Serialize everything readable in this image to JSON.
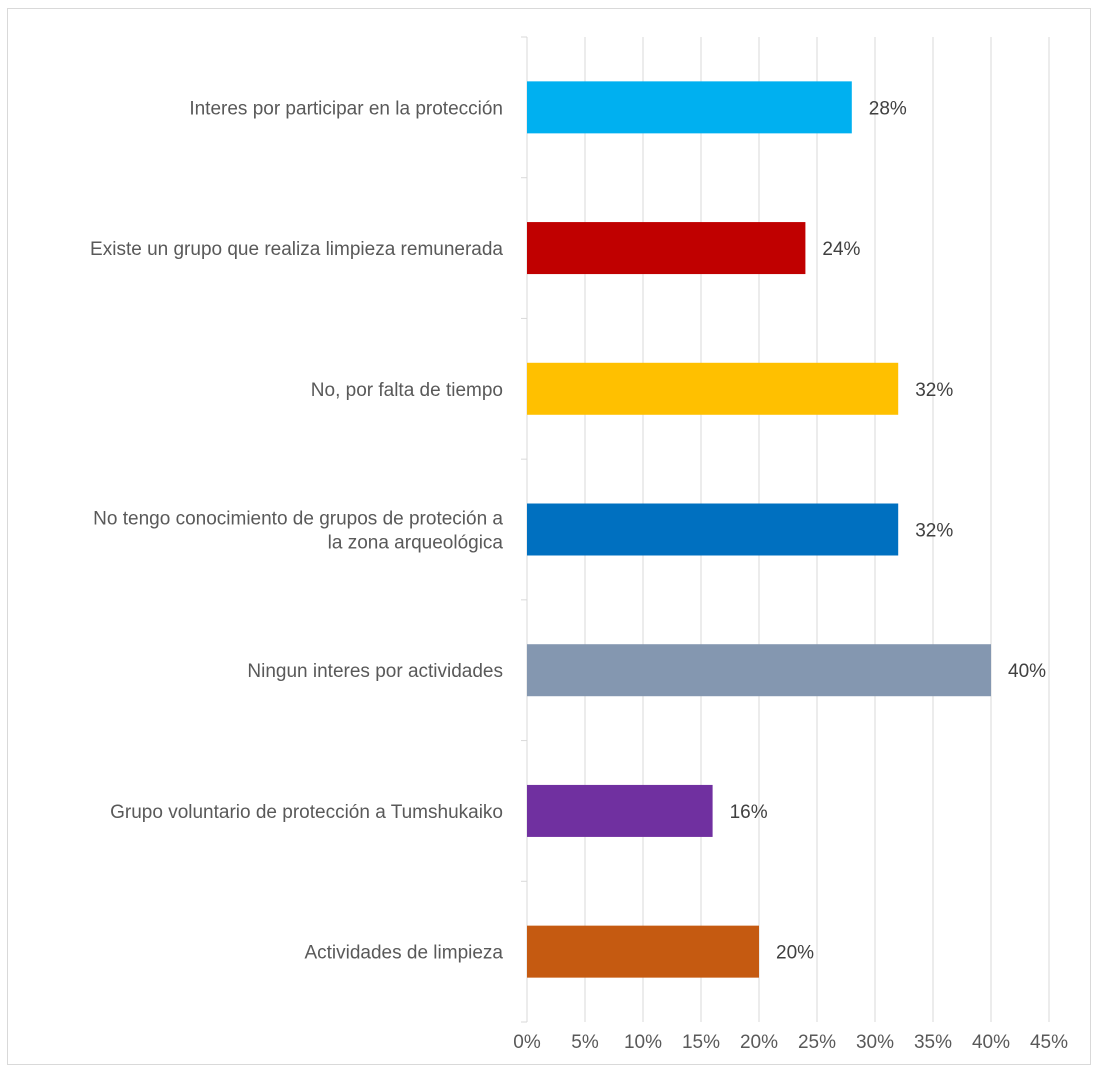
{
  "chart_data": {
    "type": "bar",
    "orientation": "horizontal",
    "title": "",
    "xlabel": "",
    "ylabel": "",
    "xlim": [
      0,
      45
    ],
    "x_ticks": [
      "0%",
      "5%",
      "10%",
      "15%",
      "20%",
      "25%",
      "30%",
      "35%",
      "40%",
      "45%"
    ],
    "grid": "vertical gridlines",
    "legend": "none",
    "categories": [
      [
        "Interes por participar en la protección"
      ],
      [
        "Existe un grupo que realiza limpieza remunerada"
      ],
      [
        "No, por falta de tiempo"
      ],
      [
        "No tengo conocimiento de grupos de proteción a",
        "la zona arqueológica"
      ],
      [
        "Ningun interes por actividades"
      ],
      [
        "Grupo voluntario de protección a Tumshukaiko"
      ],
      [
        "Actividades de limpieza"
      ]
    ],
    "values": [
      28,
      24,
      32,
      32,
      40,
      16,
      20
    ],
    "value_labels": [
      "28%",
      "24%",
      "32%",
      "32%",
      "40%",
      "16%",
      "20%"
    ],
    "colors": [
      "#00B0F0",
      "#C00000",
      "#FFC000",
      "#0070C0",
      "#8497B0",
      "#7030A0",
      "#C55A11"
    ]
  }
}
